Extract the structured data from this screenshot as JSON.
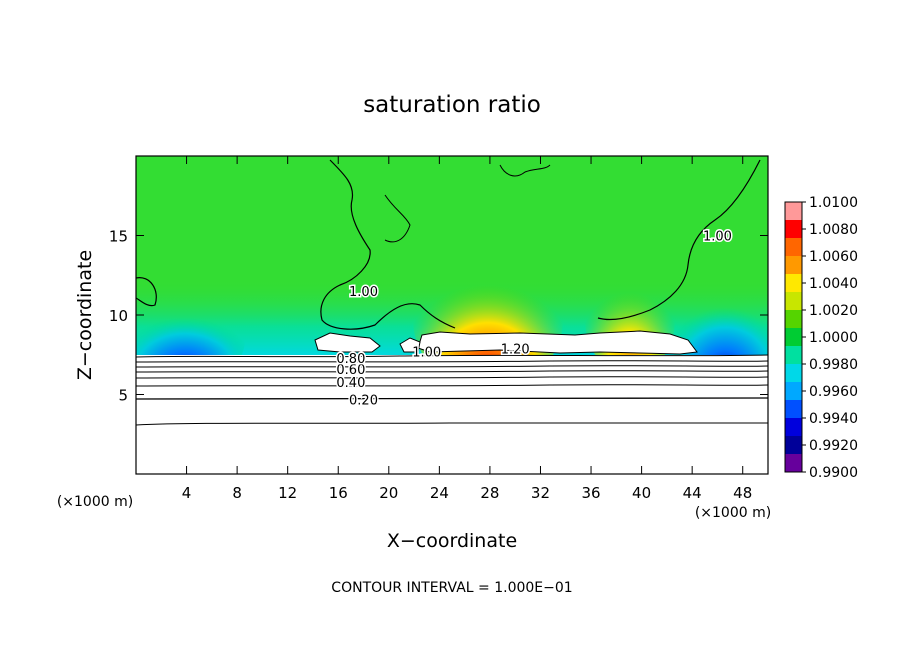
{
  "chart_data": {
    "type": "heatmap",
    "title": "saturation ratio",
    "xlabel": "X−coordinate",
    "ylabel": "Z−coordinate",
    "x_unit_left": "(×1000 m)",
    "x_unit_right": "(×1000 m)",
    "footer": "CONTOUR INTERVAL = 1.000E−01",
    "xlim": [
      0,
      50
    ],
    "ylim": [
      0,
      20
    ],
    "x_ticks": [
      4,
      8,
      12,
      16,
      20,
      24,
      28,
      32,
      36,
      40,
      44,
      48
    ],
    "y_ticks": [
      5,
      10,
      15
    ],
    "colorbar": {
      "labels": [
        "1.0100",
        "1.0080",
        "1.0060",
        "1.0040",
        "1.0020",
        "1.0000",
        "0.9980",
        "0.9960",
        "0.9940",
        "0.9920",
        "0.9900"
      ],
      "colors_top_to_bottom": [
        "#ff9999",
        "#ff0000",
        "#ff6600",
        "#ff9900",
        "#ffe800",
        "#c8e600",
        "#55d400",
        "#00cc33",
        "#00e0a0",
        "#00d8e8",
        "#00a8ff",
        "#0050ff",
        "#0000dd",
        "#000099",
        "#66009c"
      ]
    },
    "contour_labels": [
      {
        "text": "0.20",
        "x": 18,
        "z": 4.7
      },
      {
        "text": "0.40",
        "x": 17,
        "z": 5.8
      },
      {
        "text": "0.60",
        "x": 17,
        "z": 6.6
      },
      {
        "text": "0.80",
        "x": 17,
        "z": 7.3
      },
      {
        "text": "1.00",
        "x": 18,
        "z": 11.5
      },
      {
        "text": "1.00",
        "x": 23,
        "z": 7.7
      },
      {
        "text": "1.20",
        "x": 30,
        "z": 7.9
      },
      {
        "text": "1.00",
        "x": 46,
        "z": 15
      }
    ]
  }
}
